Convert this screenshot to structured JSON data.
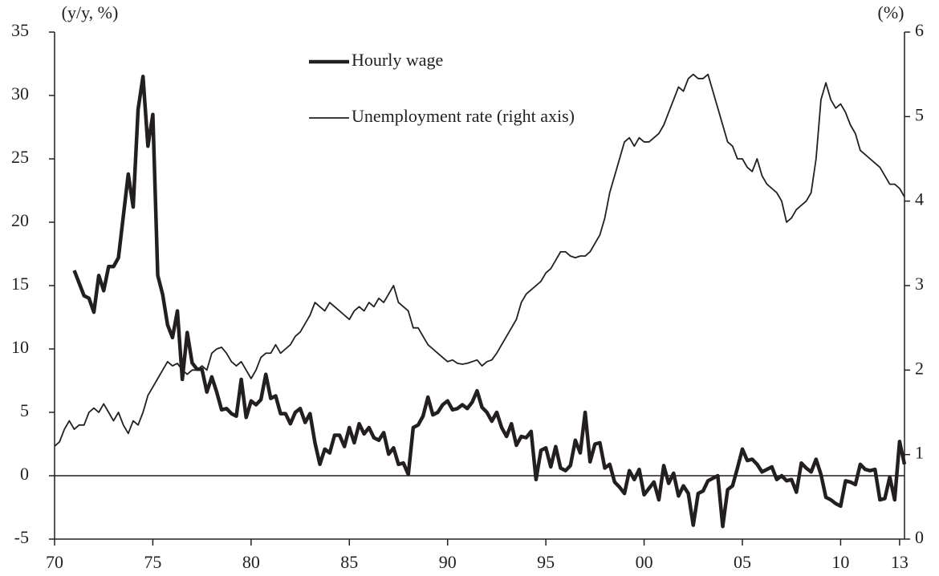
{
  "chart_data": {
    "type": "line",
    "y_label": "(y/y, %)",
    "y2_label": "(%)",
    "xlim": [
      1970,
      2013.25
    ],
    "xticks": [
      {
        "value": 1970,
        "label": "70"
      },
      {
        "value": 1975,
        "label": "75"
      },
      {
        "value": 1980,
        "label": "80"
      },
      {
        "value": 1985,
        "label": "85"
      },
      {
        "value": 1990,
        "label": "90"
      },
      {
        "value": 1995,
        "label": "95"
      },
      {
        "value": 2000,
        "label": "00"
      },
      {
        "value": 2005,
        "label": "05"
      },
      {
        "value": 2010,
        "label": "10"
      },
      {
        "value": 2013,
        "label": "13"
      }
    ],
    "ylim": [
      -5,
      35
    ],
    "yticks": [
      -5,
      0,
      5,
      10,
      15,
      20,
      25,
      30,
      35
    ],
    "y2lim": [
      0,
      6
    ],
    "y2ticks": [
      0,
      1,
      2,
      3,
      4,
      5,
      6
    ],
    "legend": "top-center",
    "series": [
      {
        "name": "Hourly wage",
        "color": "#231f20",
        "width": 4.5,
        "x": [
          1971,
          1971.25,
          1971.5,
          1971.75,
          1972,
          1972.25,
          1972.5,
          1972.75,
          1973,
          1973.25,
          1973.5,
          1973.75,
          1974,
          1974.25,
          1974.5,
          1974.75,
          1975,
          1975.25,
          1975.5,
          1975.75,
          1976,
          1976.25,
          1976.5,
          1976.75,
          1977,
          1977.25,
          1977.5,
          1977.75,
          1978,
          1978.25,
          1978.5,
          1978.75,
          1979,
          1979.25,
          1979.5,
          1979.75,
          1980,
          1980.25,
          1980.5,
          1980.75,
          1981,
          1981.25,
          1981.5,
          1981.75,
          1982,
          1982.25,
          1982.5,
          1982.75,
          1983,
          1983.25,
          1983.5,
          1983.75,
          1984,
          1984.25,
          1984.5,
          1984.75,
          1985,
          1985.25,
          1985.5,
          1985.75,
          1986,
          1986.25,
          1986.5,
          1986.75,
          1987,
          1987.25,
          1987.5,
          1987.75,
          1988,
          1988.25,
          1988.5,
          1988.75,
          1989,
          1989.25,
          1989.5,
          1989.75,
          1990,
          1990.25,
          1990.5,
          1990.75,
          1991,
          1991.25,
          1991.5,
          1991.75,
          1992,
          1992.25,
          1992.5,
          1992.75,
          1993,
          1993.25,
          1993.5,
          1993.75,
          1994,
          1994.25,
          1994.5,
          1994.75,
          1995,
          1995.25,
          1995.5,
          1995.75,
          1996,
          1996.25,
          1996.5,
          1996.75,
          1997,
          1997.25,
          1997.5,
          1997.75,
          1998,
          1998.25,
          1998.5,
          1998.75,
          1999,
          1999.25,
          1999.5,
          1999.75,
          2000,
          2000.25,
          2000.5,
          2000.75,
          2001,
          2001.25,
          2001.5,
          2001.75,
          2002,
          2002.25,
          2002.5,
          2002.75,
          2003,
          2003.25,
          2003.5,
          2003.75,
          2004,
          2004.25,
          2004.5,
          2004.75,
          2005,
          2005.25,
          2005.5,
          2005.75,
          2006,
          2006.25,
          2006.5,
          2006.75,
          2007,
          2007.25,
          2007.5,
          2007.75,
          2008,
          2008.25,
          2008.5,
          2008.75,
          2009,
          2009.25,
          2009.5,
          2009.75,
          2010,
          2010.25,
          2010.5,
          2010.75,
          2011,
          2011.25,
          2011.5,
          2011.75,
          2012,
          2012.25,
          2012.5,
          2012.75,
          2013,
          2013.25
        ],
        "values": [
          16.2,
          15.2,
          14.2,
          14.0,
          12.9,
          15.8,
          14.6,
          16.5,
          16.5,
          17.2,
          20.5,
          23.8,
          21.2,
          28.9,
          31.5,
          26.0,
          28.5,
          15.8,
          14.3,
          11.9,
          10.9,
          13.0,
          7.6,
          11.3,
          8.9,
          8.4,
          8.4,
          6.6,
          7.8,
          6.6,
          5.2,
          5.3,
          4.9,
          4.7,
          7.6,
          4.6,
          5.9,
          5.6,
          6.0,
          8.0,
          6.1,
          6.3,
          4.9,
          4.9,
          4.1,
          5.0,
          5.3,
          4.2,
          4.9,
          2.6,
          0.9,
          2.1,
          1.8,
          3.2,
          3.2,
          2.3,
          3.8,
          2.6,
          4.1,
          3.3,
          3.8,
          3.0,
          2.8,
          3.4,
          1.7,
          2.2,
          0.9,
          1.0,
          0.1,
          3.8,
          4.0,
          4.7,
          6.2,
          4.8,
          5.0,
          5.6,
          5.9,
          5.2,
          5.3,
          5.6,
          5.3,
          5.8,
          6.7,
          5.4,
          5.0,
          4.3,
          5.0,
          3.8,
          3.1,
          4.1,
          2.4,
          3.1,
          3.0,
          3.5,
          -0.3,
          2.0,
          2.2,
          0.7,
          2.3,
          0.6,
          0.4,
          0.8,
          2.8,
          1.8,
          5.0,
          1.1,
          2.5,
          2.6,
          0.6,
          0.9,
          -0.5,
          -0.9,
          -1.4,
          0.4,
          -0.3,
          0.5,
          -1.5,
          -1.0,
          -0.5,
          -1.9,
          0.8,
          -0.6,
          0.2,
          -1.6,
          -0.8,
          -1.4,
          -3.9,
          -1.4,
          -1.2,
          -0.4,
          -0.2,
          0.0,
          -4.0,
          -1.1,
          -0.8,
          0.6,
          2.1,
          1.2,
          1.3,
          0.9,
          0.3,
          0.5,
          0.7,
          -0.3,
          0.0,
          -0.4,
          -0.3,
          -1.3,
          1.0,
          0.6,
          0.3,
          1.3,
          0.1,
          -1.7,
          -1.9,
          -2.2,
          -2.4,
          -0.4,
          -0.5,
          -0.7,
          0.9,
          0.5,
          0.4,
          0.5,
          -1.9,
          -1.8,
          -0.1,
          -1.9,
          2.7,
          0.9
        ]
      },
      {
        "name": "Unemployment rate (right axis)",
        "color": "#231f20",
        "width": 1.8,
        "axis": "y2",
        "x": [
          1970,
          1970.25,
          1970.5,
          1970.75,
          1971,
          1971.25,
          1971.5,
          1971.75,
          1972,
          1972.25,
          1972.5,
          1972.75,
          1973,
          1973.25,
          1973.5,
          1973.75,
          1974,
          1974.25,
          1974.5,
          1974.75,
          1975,
          1975.25,
          1975.5,
          1975.75,
          1976,
          1976.25,
          1976.5,
          1976.75,
          1977,
          1977.25,
          1977.5,
          1977.75,
          1978,
          1978.25,
          1978.5,
          1978.75,
          1979,
          1979.25,
          1979.5,
          1979.75,
          1980,
          1980.25,
          1980.5,
          1980.75,
          1981,
          1981.25,
          1981.5,
          1981.75,
          1982,
          1982.25,
          1982.5,
          1982.75,
          1983,
          1983.25,
          1983.5,
          1983.75,
          1984,
          1984.25,
          1984.5,
          1984.75,
          1985,
          1985.25,
          1985.5,
          1985.75,
          1986,
          1986.25,
          1986.5,
          1986.75,
          1987,
          1987.25,
          1987.5,
          1987.75,
          1988,
          1988.25,
          1988.5,
          1988.75,
          1989,
          1989.25,
          1989.5,
          1989.75,
          1990,
          1990.25,
          1990.5,
          1990.75,
          1991,
          1991.25,
          1991.5,
          1991.75,
          1992,
          1992.25,
          1992.5,
          1992.75,
          1993,
          1993.25,
          1993.5,
          1993.75,
          1994,
          1994.25,
          1994.5,
          1994.75,
          1995,
          1995.25,
          1995.5,
          1995.75,
          1996,
          1996.25,
          1996.5,
          1996.75,
          1997,
          1997.25,
          1997.5,
          1997.75,
          1998,
          1998.25,
          1998.5,
          1998.75,
          1999,
          1999.25,
          1999.5,
          1999.75,
          2000,
          2000.25,
          2000.5,
          2000.75,
          2001,
          2001.25,
          2001.5,
          2001.75,
          2002,
          2002.25,
          2002.5,
          2002.75,
          2003,
          2003.25,
          2003.5,
          2003.75,
          2004,
          2004.25,
          2004.5,
          2004.75,
          2005,
          2005.25,
          2005.5,
          2005.75,
          2006,
          2006.25,
          2006.5,
          2006.75,
          2007,
          2007.25,
          2007.5,
          2007.75,
          2008,
          2008.25,
          2008.5,
          2008.75,
          2009,
          2009.25,
          2009.5,
          2009.75,
          2010,
          2010.25,
          2010.5,
          2010.75,
          2011,
          2011.25,
          2011.5,
          2011.75,
          2012,
          2012.25,
          2012.5,
          2012.75,
          2013,
          2013.25
        ],
        "values": [
          1.1,
          1.15,
          1.3,
          1.4,
          1.3,
          1.35,
          1.35,
          1.5,
          1.55,
          1.5,
          1.6,
          1.5,
          1.4,
          1.5,
          1.35,
          1.25,
          1.4,
          1.35,
          1.5,
          1.7,
          1.8,
          1.9,
          2.0,
          2.1,
          2.05,
          2.08,
          2.0,
          1.95,
          2.0,
          2.0,
          2.05,
          2.0,
          2.2,
          2.25,
          2.27,
          2.2,
          2.1,
          2.05,
          2.1,
          2.0,
          1.9,
          2.0,
          2.15,
          2.2,
          2.2,
          2.3,
          2.2,
          2.25,
          2.3,
          2.4,
          2.45,
          2.55,
          2.65,
          2.8,
          2.75,
          2.7,
          2.8,
          2.75,
          2.7,
          2.65,
          2.6,
          2.7,
          2.75,
          2.7,
          2.8,
          2.75,
          2.85,
          2.8,
          2.9,
          3.0,
          2.8,
          2.75,
          2.7,
          2.5,
          2.5,
          2.4,
          2.3,
          2.25,
          2.2,
          2.15,
          2.1,
          2.12,
          2.08,
          2.07,
          2.08,
          2.1,
          2.12,
          2.05,
          2.1,
          2.12,
          2.2,
          2.3,
          2.4,
          2.5,
          2.6,
          2.8,
          2.9,
          2.95,
          3.0,
          3.05,
          3.15,
          3.2,
          3.3,
          3.4,
          3.4,
          3.35,
          3.33,
          3.35,
          3.35,
          3.4,
          3.5,
          3.6,
          3.8,
          4.1,
          4.3,
          4.5,
          4.7,
          4.75,
          4.65,
          4.75,
          4.7,
          4.7,
          4.75,
          4.8,
          4.9,
          5.05,
          5.2,
          5.35,
          5.3,
          5.45,
          5.5,
          5.45,
          5.45,
          5.5,
          5.3,
          5.1,
          4.9,
          4.7,
          4.65,
          4.5,
          4.5,
          4.4,
          4.35,
          4.5,
          4.3,
          4.2,
          4.15,
          4.1,
          4.0,
          3.75,
          3.8,
          3.9,
          3.95,
          4.0,
          4.1,
          4.5,
          5.2,
          5.4,
          5.2,
          5.1,
          5.15,
          5.05,
          4.9,
          4.8,
          4.6,
          4.55,
          4.5,
          4.45,
          4.4,
          4.3,
          4.2,
          4.2,
          4.15,
          4.05
        ]
      }
    ]
  }
}
